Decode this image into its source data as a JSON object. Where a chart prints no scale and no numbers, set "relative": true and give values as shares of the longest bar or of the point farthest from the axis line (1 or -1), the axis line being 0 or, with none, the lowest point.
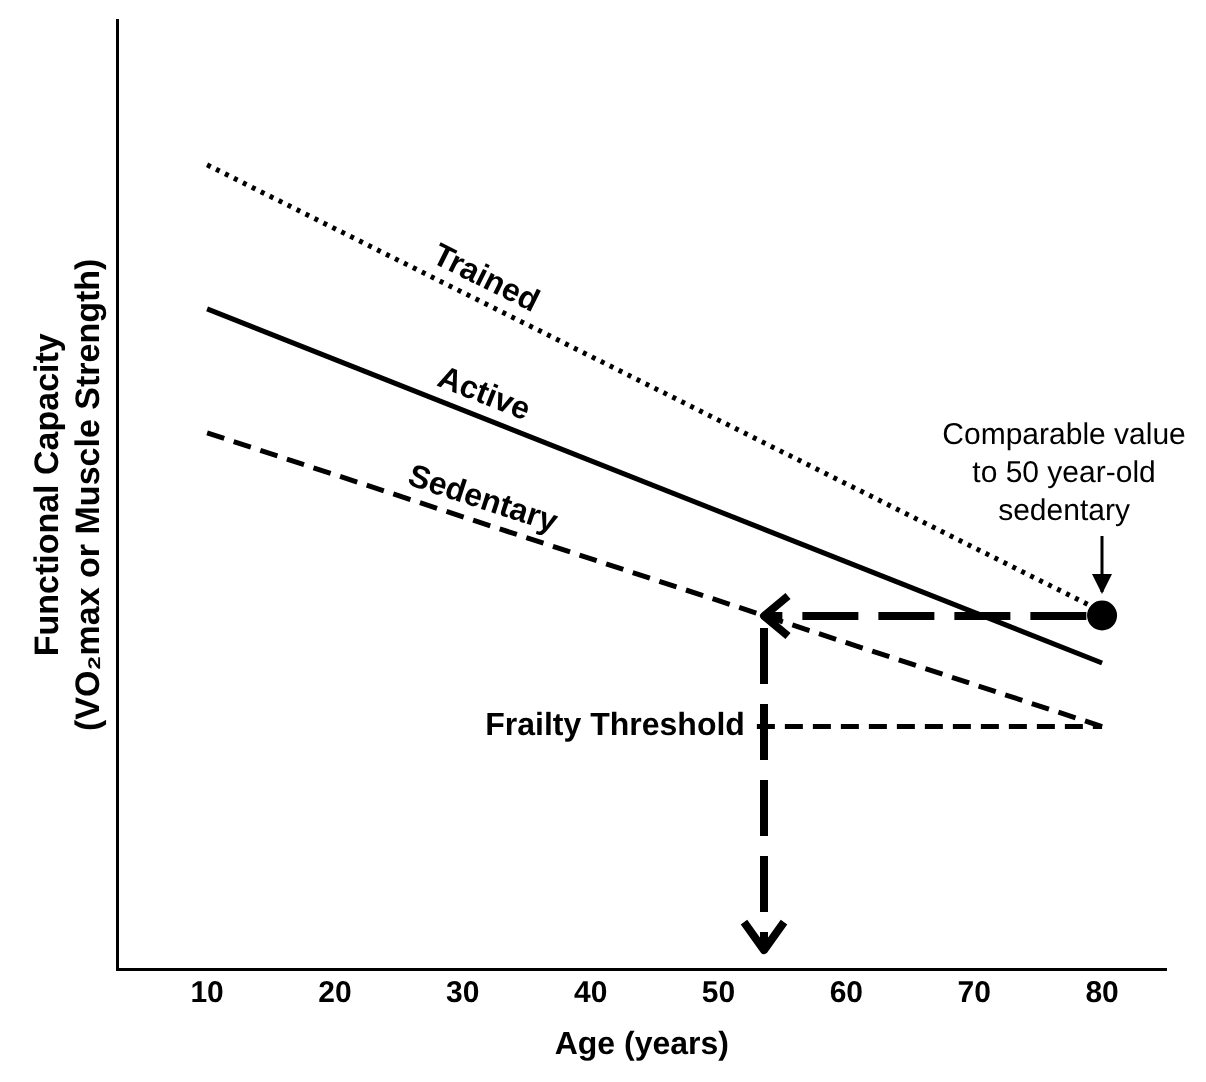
{
  "chart_data": {
    "type": "line",
    "relative": true,
    "xlabel": "Age (years)",
    "ylabel": "Functional Capacity\n(VO₂max or Muscle Strength)",
    "xlim": [
      3,
      85
    ],
    "xticks": [
      10,
      20,
      30,
      40,
      50,
      60,
      70,
      80
    ],
    "grid": false,
    "series": [
      {
        "name": "Trained",
        "color": "#000000",
        "x": [
          10,
          80
        ],
        "values": [
          1,
          0.445
        ],
        "line_style": "dotted",
        "marker": "none"
      },
      {
        "name": "Active",
        "color": "#000000",
        "x": [
          10,
          80
        ],
        "values": [
          0.821,
          0.381
        ],
        "line_style": "solid",
        "marker": "none"
      },
      {
        "name": "Sedentary",
        "color": "#000000",
        "x": [
          10,
          80
        ],
        "values": [
          0.667,
          0.302
        ],
        "line_style": "dashed",
        "marker": "none"
      },
      {
        "name": "Frailty Threshold",
        "color": "#000000",
        "x": [
          53,
          80
        ],
        "values": [
          0.302,
          0.302
        ],
        "line_style": "dashed",
        "marker": "none"
      },
      {
        "type": "scatter",
        "color": "#000000",
        "x": [
          80
        ],
        "values": [
          0.44
        ],
        "marker": "circle"
      }
    ],
    "annotations": [
      {
        "text": "Comparable value to 50 year-old sedentary",
        "x": 80,
        "y": 0.44
      }
    ]
  }
}
